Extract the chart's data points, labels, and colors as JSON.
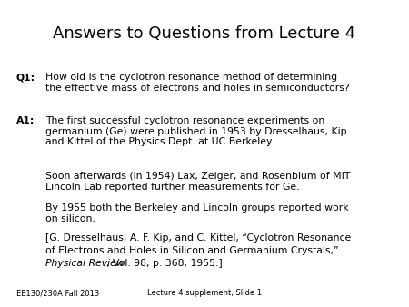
{
  "title": "Answers to Questions from Lecture 4",
  "background_color": "#ffffff",
  "text_color": "#000000",
  "footer_left": "EE130/230A Fall 2013",
  "footer_center": "Lecture 4 supplement, Slide 1",
  "q1_label": "Q1:",
  "q1_text": "How old is the cyclotron resonance method of determining\nthe effective mass of electrons and holes in semiconductors?",
  "a1_label": "A1:",
  "a1_line1": "The first successful cyclotron resonance experiments on\ngermanium (Ge) were published in 1953 by Dresselhaus, Kip\nand Kittel of the Physics Dept. at UC Berkeley.",
  "a1_line2": "Soon afterwards (in 1954) Lax, Zeiger, and Rosenblum of MIT\nLincoln Lab reported further measurements for Ge.",
  "a1_line3": "By 1955 both the Berkeley and Lincoln groups reported work\non silicon.",
  "a1_line4a": "[G. Dresselhaus, A. F. Kip, and C. Kittel, “Cyclotron Resonance",
  "a1_line4b": "of Electrons and Holes in Silicon and Germanium Crystals,”",
  "a1_line4c_italic": "Physical Review",
  "a1_line4c_normal": ", Vol. 98, p. 368, 1955.]"
}
